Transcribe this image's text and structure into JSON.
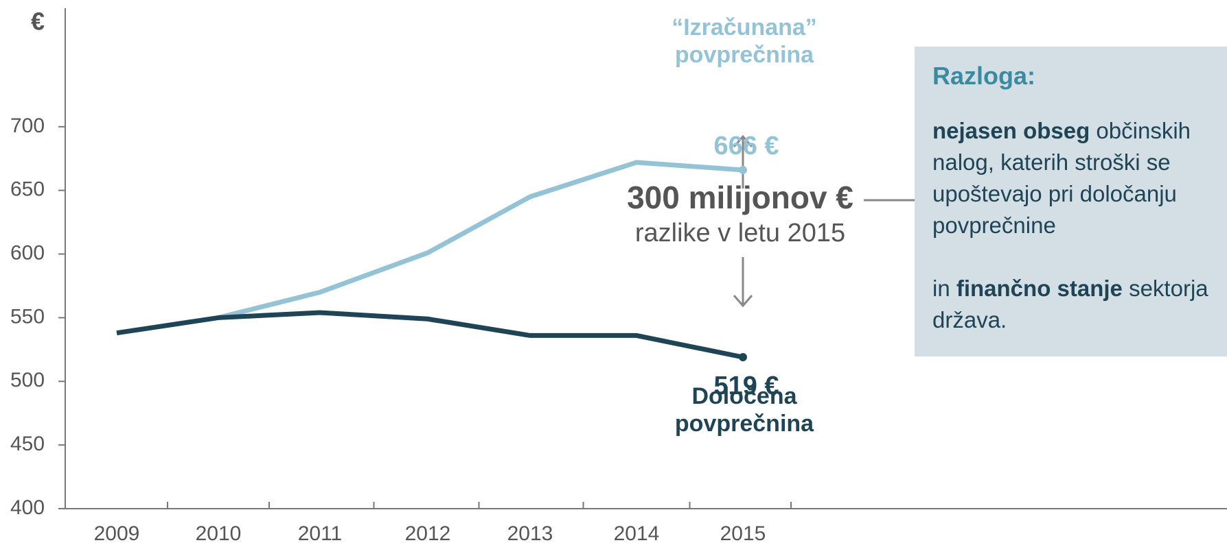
{
  "chart_data": {
    "type": "line",
    "y_label": "€",
    "categories": [
      "2009",
      "2010",
      "2011",
      "2012",
      "2013",
      "2014",
      "2015"
    ],
    "series": [
      {
        "label_lines": [
          "“Izračunana”",
          "povprečnina"
        ],
        "color": "#94c3d6",
        "values": [
          null,
          550,
          570,
          601,
          645,
          672,
          666
        ],
        "value_labels": [
          null,
          null,
          null,
          null,
          null,
          null,
          "666 €"
        ]
      },
      {
        "label_lines": [
          "Določena",
          "povprečnina"
        ],
        "color": "#1e4456",
        "values": [
          538,
          550,
          554,
          549,
          536,
          536,
          519
        ],
        "value_labels": [
          null,
          null,
          null,
          null,
          null,
          null,
          "519 €"
        ]
      }
    ],
    "ylim": [
      400,
      750
    ],
    "yticks": [
      400,
      450,
      500,
      550,
      600,
      650,
      700
    ],
    "difference": {
      "value": "300 milijonov €",
      "note": "razlike v letu 2015"
    },
    "box": {
      "title": "Razloga:",
      "p1_bold": "nejasen obseg",
      "p1_rest": "občinskih nalog, katerih stroški se upoštevajo pri določanju povprečnine",
      "p2_start": "in",
      "p2_bold": "finančno stanje",
      "p2_rest": "sektorja država."
    }
  }
}
